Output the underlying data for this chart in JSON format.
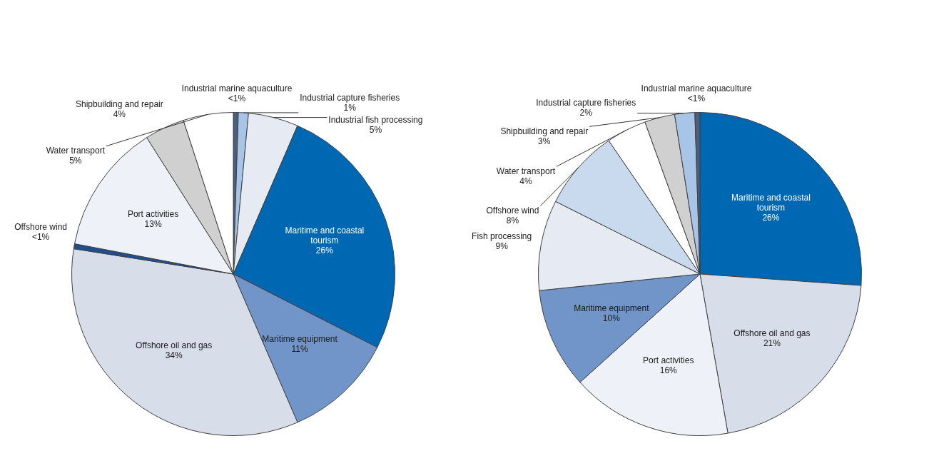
{
  "chart_data": [
    {
      "type": "pie",
      "categories": [
        "Industrial marine aquaculture",
        "Industrial capture fisheries",
        "Industrial fish processing",
        "Maritime and coastal tourism",
        "Maritime equipment",
        "Offshore oil and gas",
        "Offshore wind",
        "Port activities",
        "Shipbuilding and repair",
        "Water transport"
      ],
      "values": [
        0.5,
        1,
        5,
        26,
        11,
        34,
        0.5,
        13,
        4,
        5
      ],
      "value_labels": [
        "<1%",
        "1%",
        "5%",
        "26%",
        "11%",
        "34%",
        "<1%",
        "13%",
        "4%",
        "5%"
      ],
      "colors": [
        "#4a5f80",
        "#a8c4e6",
        "#e6ebf3",
        "#0068b3",
        "#7195c9",
        "#d7dde9",
        "#1f4f8f",
        "#eef1f7",
        "#d0d0d0",
        "#ffffff"
      ]
    },
    {
      "type": "pie",
      "categories": [
        "Maritime and coastal tourism",
        "Offshore oil and gas",
        "Port activities",
        "Maritime equipment",
        "Fish processing",
        "Offshore wind",
        "Water transport",
        "Shipbuilding and repair",
        "Industrial capture fisheries",
        "Industrial marine aquaculture"
      ],
      "values": [
        26,
        21,
        16,
        10,
        9,
        8,
        4,
        3,
        2,
        0.5
      ],
      "value_labels": [
        "26%",
        "21%",
        "16%",
        "10%",
        "9%",
        "8%",
        "4%",
        "3%",
        "2%",
        "<1%"
      ],
      "colors": [
        "#0068b3",
        "#d7dde9",
        "#eef1f7",
        "#7195c9",
        "#e6ebf3",
        "#c9d9ee",
        "#ffffff",
        "#d0d0d0",
        "#a8c4e6",
        "#4a5f80"
      ]
    }
  ]
}
